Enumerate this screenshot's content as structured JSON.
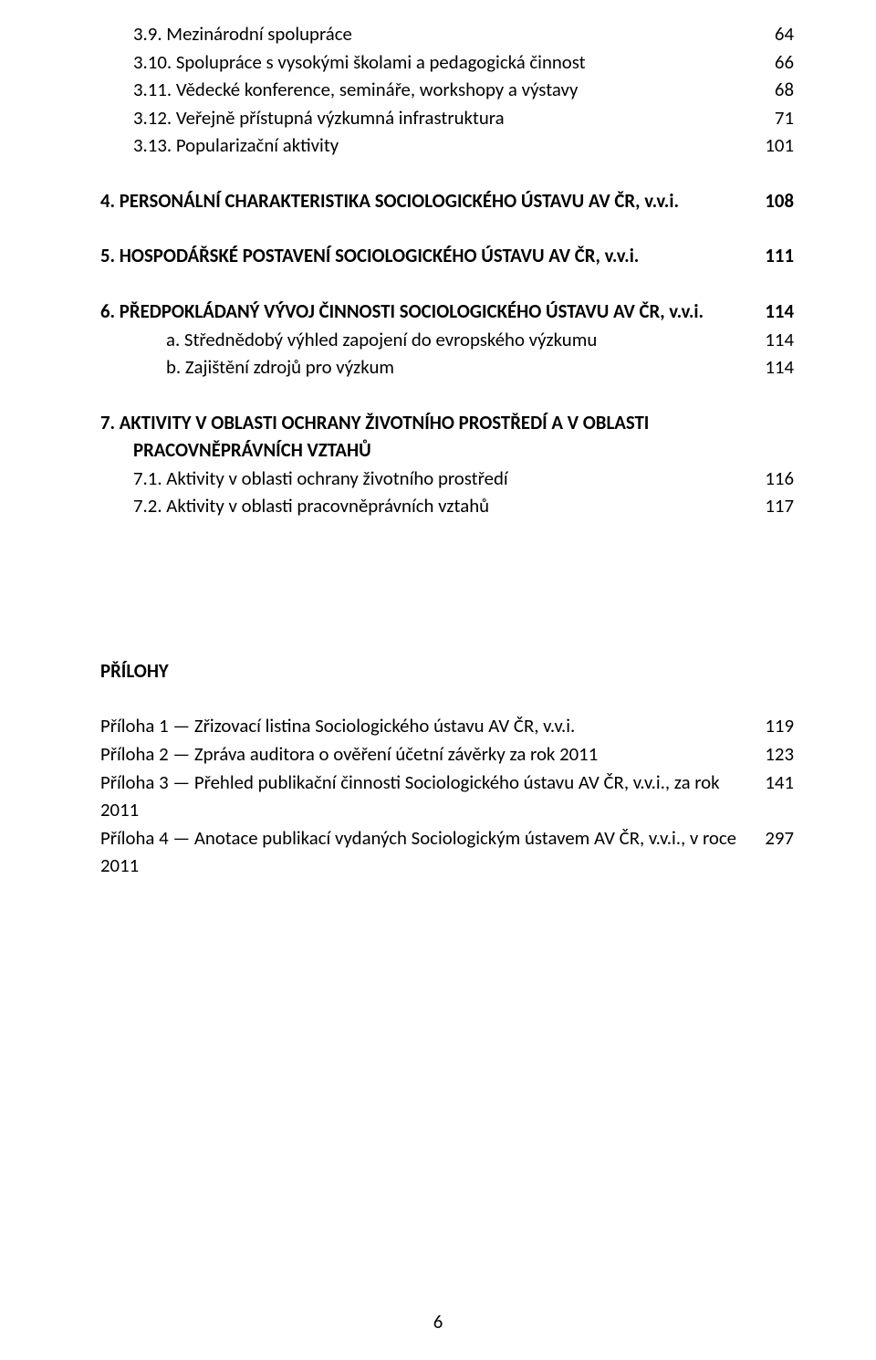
{
  "toc": {
    "items": [
      {
        "label": "3.9. Mezinárodní spolupráce",
        "page": "64",
        "indent": "ind1",
        "bold": false
      },
      {
        "label": "3.10. Spolupráce s vysokými školami a pedagogická činnost",
        "page": "66",
        "indent": "ind1",
        "bold": false
      },
      {
        "label": "3.11. Vědecké konference, semináře, workshopy a výstavy",
        "page": "68",
        "indent": "ind1",
        "bold": false
      },
      {
        "label": "3.12. Veřejně přístupná výzkumná infrastruktura",
        "page": "71",
        "indent": "ind1",
        "bold": false
      },
      {
        "label": "3.13. Popularizační aktivity",
        "page": "101",
        "indent": "ind1",
        "bold": false
      }
    ],
    "section4": {
      "label": "4. PERSONÁLNÍ CHARAKTERISTIKA SOCIOLOGICKÉHO ÚSTAVU AV ČR, v.v.i.",
      "page": "108"
    },
    "section5": {
      "label": "5. HOSPODÁŘSKÉ POSTAVENÍ SOCIOLOGICKÉHO ÚSTAVU AV ČR, v.v.i.",
      "page": "111"
    },
    "section6": {
      "label": "6. PŘEDPOKLÁDANÝ VÝVOJ ČINNOSTI SOCIOLOGICKÉHO ÚSTAVU AV ČR, v.v.i.",
      "page": "114",
      "a": {
        "label": "a. Střednědobý výhled zapojení do evropského výzkumu",
        "page": "114"
      },
      "b": {
        "label": "b. Zajištění zdrojů pro výzkum",
        "page": "114"
      }
    },
    "section7": {
      "line1": "7. AKTIVITY V OBLASTI OCHRANY ŽIVOTNÍHO PROSTŘEDÍ A V OBLASTI",
      "line2": "PRACOVNĚPRÁVNÍCH VZTAHŮ",
      "s71": {
        "label": "7.1. Aktivity v oblasti ochrany životního prostředí",
        "page": "116"
      },
      "s72": {
        "label": "7.2. Aktivity v oblasti pracovněprávních vztahů",
        "page": "117"
      }
    },
    "prilohy_heading": "PŘÍLOHY",
    "prilohy": [
      {
        "label": "Příloha 1 — Zřizovací listina Sociologického ústavu AV ČR, v.v.i.",
        "page": "119"
      },
      {
        "label": "Příloha 2 — Zpráva auditora o ověření účetní závěrky za rok 2011",
        "page": "123"
      },
      {
        "label": "Příloha 3 — Přehled publikační činnosti Sociologického ústavu AV ČR, v.v.i., za rok 2011",
        "page": "141"
      },
      {
        "label": "Příloha 4 — Anotace publikací vydaných Sociologickým ústavem AV ČR, v.v.i., v roce 2011",
        "page": "297"
      }
    ]
  },
  "page_number": "6"
}
